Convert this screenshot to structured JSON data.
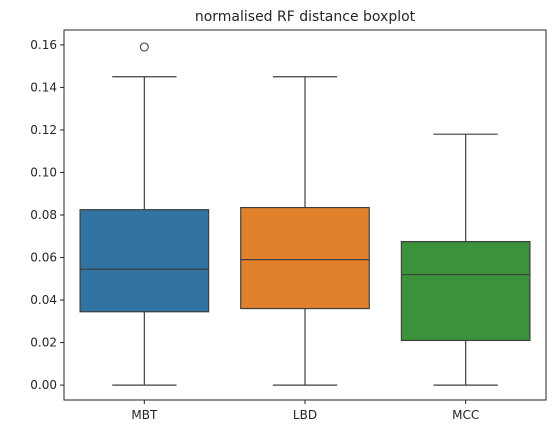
{
  "chart_data": {
    "type": "boxplot",
    "title": "normalised RF distance boxplot",
    "xlabel": "",
    "ylabel": "",
    "ylim": [
      -0.007,
      0.167
    ],
    "yticks": [
      0.0,
      0.02,
      0.04,
      0.06,
      0.08,
      0.1,
      0.12,
      0.14,
      0.16
    ],
    "ytick_labels": [
      "0.00",
      "0.02",
      "0.04",
      "0.06",
      "0.08",
      "0.10",
      "0.12",
      "0.14",
      "0.16"
    ],
    "categories": [
      "MBT",
      "LBD",
      "MCC"
    ],
    "grid": false,
    "boxes": [
      {
        "label": "MBT",
        "color": "#3274a1",
        "whisker_low": 0.0,
        "q1": 0.0345,
        "median": 0.0545,
        "q3": 0.0825,
        "whisker_high": 0.145,
        "outliers": [
          0.159
        ]
      },
      {
        "label": "LBD",
        "color": "#e1812c",
        "whisker_low": 0.0,
        "q1": 0.036,
        "median": 0.059,
        "q3": 0.0835,
        "whisker_high": 0.145,
        "outliers": []
      },
      {
        "label": "MCC",
        "color": "#3a923a",
        "whisker_low": 0.0,
        "q1": 0.021,
        "median": 0.052,
        "q3": 0.0675,
        "whisker_high": 0.118,
        "outliers": []
      }
    ],
    "line_color": "#3f3f3f"
  }
}
